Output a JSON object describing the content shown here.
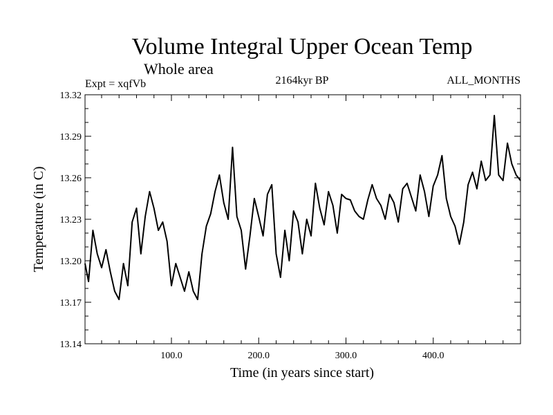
{
  "chart_data": {
    "type": "line",
    "title": "Volume Integral Upper Ocean Temp",
    "subtitle": "Whole area",
    "experiment": "Expt = xqfVb",
    "period": "2164kyr BP",
    "months": "ALL_MONTHS",
    "xlabel": "Time (in years since start)",
    "ylabel": "Temperature (in C)",
    "xlim": [
      1,
      500
    ],
    "ylim": [
      13.14,
      13.32
    ],
    "xticks": [
      100,
      200,
      300,
      400
    ],
    "xtick_labels": [
      "100.0",
      "200.0",
      "300.0",
      "400.0"
    ],
    "yticks": [
      13.14,
      13.17,
      13.2,
      13.23,
      13.26,
      13.29,
      13.32
    ],
    "ytick_labels": [
      "13.14",
      "13.17",
      "13.20",
      "13.23",
      "13.26",
      "13.29",
      "13.32"
    ],
    "series": [
      {
        "name": "Temperature",
        "x": [
          1,
          5,
          10,
          15,
          20,
          25,
          30,
          35,
          40,
          45,
          50,
          55,
          60,
          65,
          70,
          75,
          80,
          85,
          90,
          95,
          100,
          105,
          110,
          115,
          120,
          125,
          130,
          135,
          140,
          145,
          150,
          155,
          160,
          165,
          170,
          175,
          180,
          185,
          190,
          195,
          200,
          205,
          210,
          215,
          220,
          225,
          230,
          235,
          240,
          245,
          250,
          255,
          260,
          265,
          270,
          275,
          280,
          285,
          290,
          295,
          300,
          305,
          310,
          315,
          320,
          325,
          330,
          335,
          340,
          345,
          350,
          355,
          360,
          365,
          370,
          375,
          380,
          385,
          390,
          395,
          400,
          405,
          410,
          415,
          420,
          425,
          430,
          435,
          440,
          445,
          450,
          455,
          460,
          465,
          470,
          475,
          480,
          485,
          490,
          495,
          500
        ],
        "values": [
          13.198,
          13.185,
          13.222,
          13.205,
          13.195,
          13.208,
          13.192,
          13.178,
          13.172,
          13.198,
          13.182,
          13.228,
          13.238,
          13.205,
          13.232,
          13.25,
          13.238,
          13.222,
          13.228,
          13.214,
          13.182,
          13.198,
          13.188,
          13.178,
          13.192,
          13.178,
          13.172,
          13.205,
          13.225,
          13.234,
          13.25,
          13.262,
          13.242,
          13.23,
          13.282,
          13.232,
          13.222,
          13.194,
          13.218,
          13.245,
          13.232,
          13.218,
          13.248,
          13.255,
          13.205,
          13.188,
          13.222,
          13.2,
          13.236,
          13.228,
          13.205,
          13.23,
          13.218,
          13.256,
          13.238,
          13.226,
          13.25,
          13.24,
          13.22,
          13.248,
          13.245,
          13.244,
          13.236,
          13.232,
          13.23,
          13.244,
          13.255,
          13.245,
          13.24,
          13.23,
          13.248,
          13.242,
          13.228,
          13.252,
          13.256,
          13.246,
          13.236,
          13.262,
          13.25,
          13.232,
          13.254,
          13.262,
          13.276,
          13.245,
          13.232,
          13.225,
          13.212,
          13.228,
          13.255,
          13.264,
          13.252,
          13.272,
          13.258,
          13.262,
          13.305,
          13.262,
          13.258,
          13.285,
          13.27,
          13.262,
          13.258
        ]
      }
    ]
  }
}
